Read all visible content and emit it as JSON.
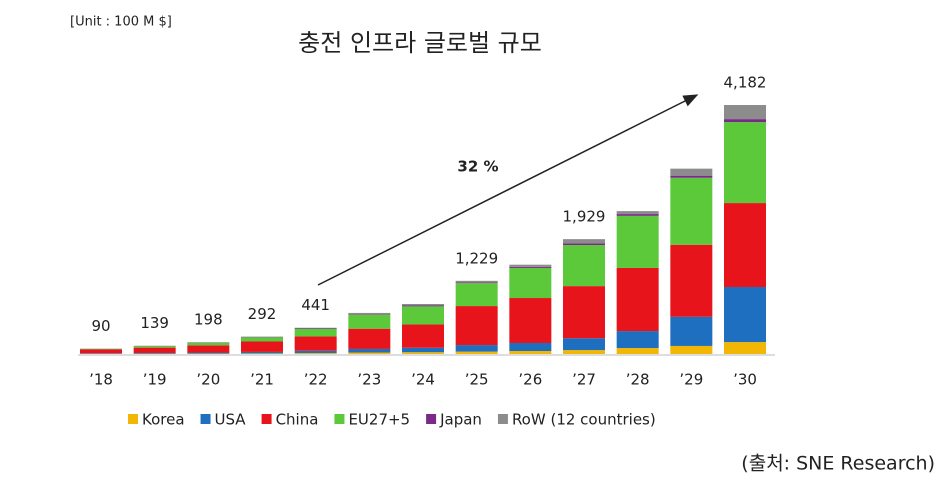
{
  "chart_data": {
    "type": "stacked_bar",
    "title": "충전 인프라 글로벌 규모",
    "unit_note": "[Unit : 100 M $]",
    "annotation": "32 %",
    "source": "(출처: SNE Research)",
    "categories": [
      "’18",
      "’19",
      "’20",
      "’21",
      "’22",
      "’23",
      "’24",
      "’25",
      "’26",
      "’27",
      "’28",
      "’29",
      "’30"
    ],
    "series": [
      {
        "name": "Korea",
        "color": "#f2b705",
        "values": [
          3,
          5,
          7,
          10,
          15,
          25,
          30,
          40,
          50,
          65,
          100,
          135,
          200
        ]
      },
      {
        "name": "USA",
        "color": "#1f6fc0",
        "values": [
          8,
          12,
          18,
          25,
          40,
          60,
          75,
          110,
          135,
          200,
          285,
          490,
          925
        ]
      },
      {
        "name": "China",
        "color": "#e8141b",
        "values": [
          65,
          90,
          120,
          175,
          240,
          340,
          390,
          655,
          755,
          875,
          1060,
          1210,
          1410
        ]
      },
      {
        "name": "EU27+5",
        "color": "#5cc93a",
        "values": [
          8,
          25,
          45,
          70,
          125,
          235,
          305,
          385,
          505,
          690,
          875,
          1125,
          1360
        ]
      },
      {
        "name": "Japan",
        "color": "#7b2a8a",
        "values": [
          3,
          3,
          3,
          5,
          8,
          10,
          15,
          15,
          20,
          30,
          30,
          35,
          50
        ]
      },
      {
        "name": "RoW (12 countries)",
        "color": "#8c8c8c",
        "values": [
          3,
          4,
          5,
          7,
          13,
          20,
          25,
          24,
          35,
          69,
          50,
          118,
          237
        ]
      }
    ],
    "totals": [
      90,
      139,
      198,
      292,
      441,
      null,
      null,
      1229,
      null,
      1929,
      null,
      null,
      4182
    ],
    "total_labels": [
      "90",
      "139",
      "198",
      "292",
      "441",
      null,
      null,
      "1,229",
      null,
      "1,929",
      null,
      null,
      "4,182"
    ]
  }
}
